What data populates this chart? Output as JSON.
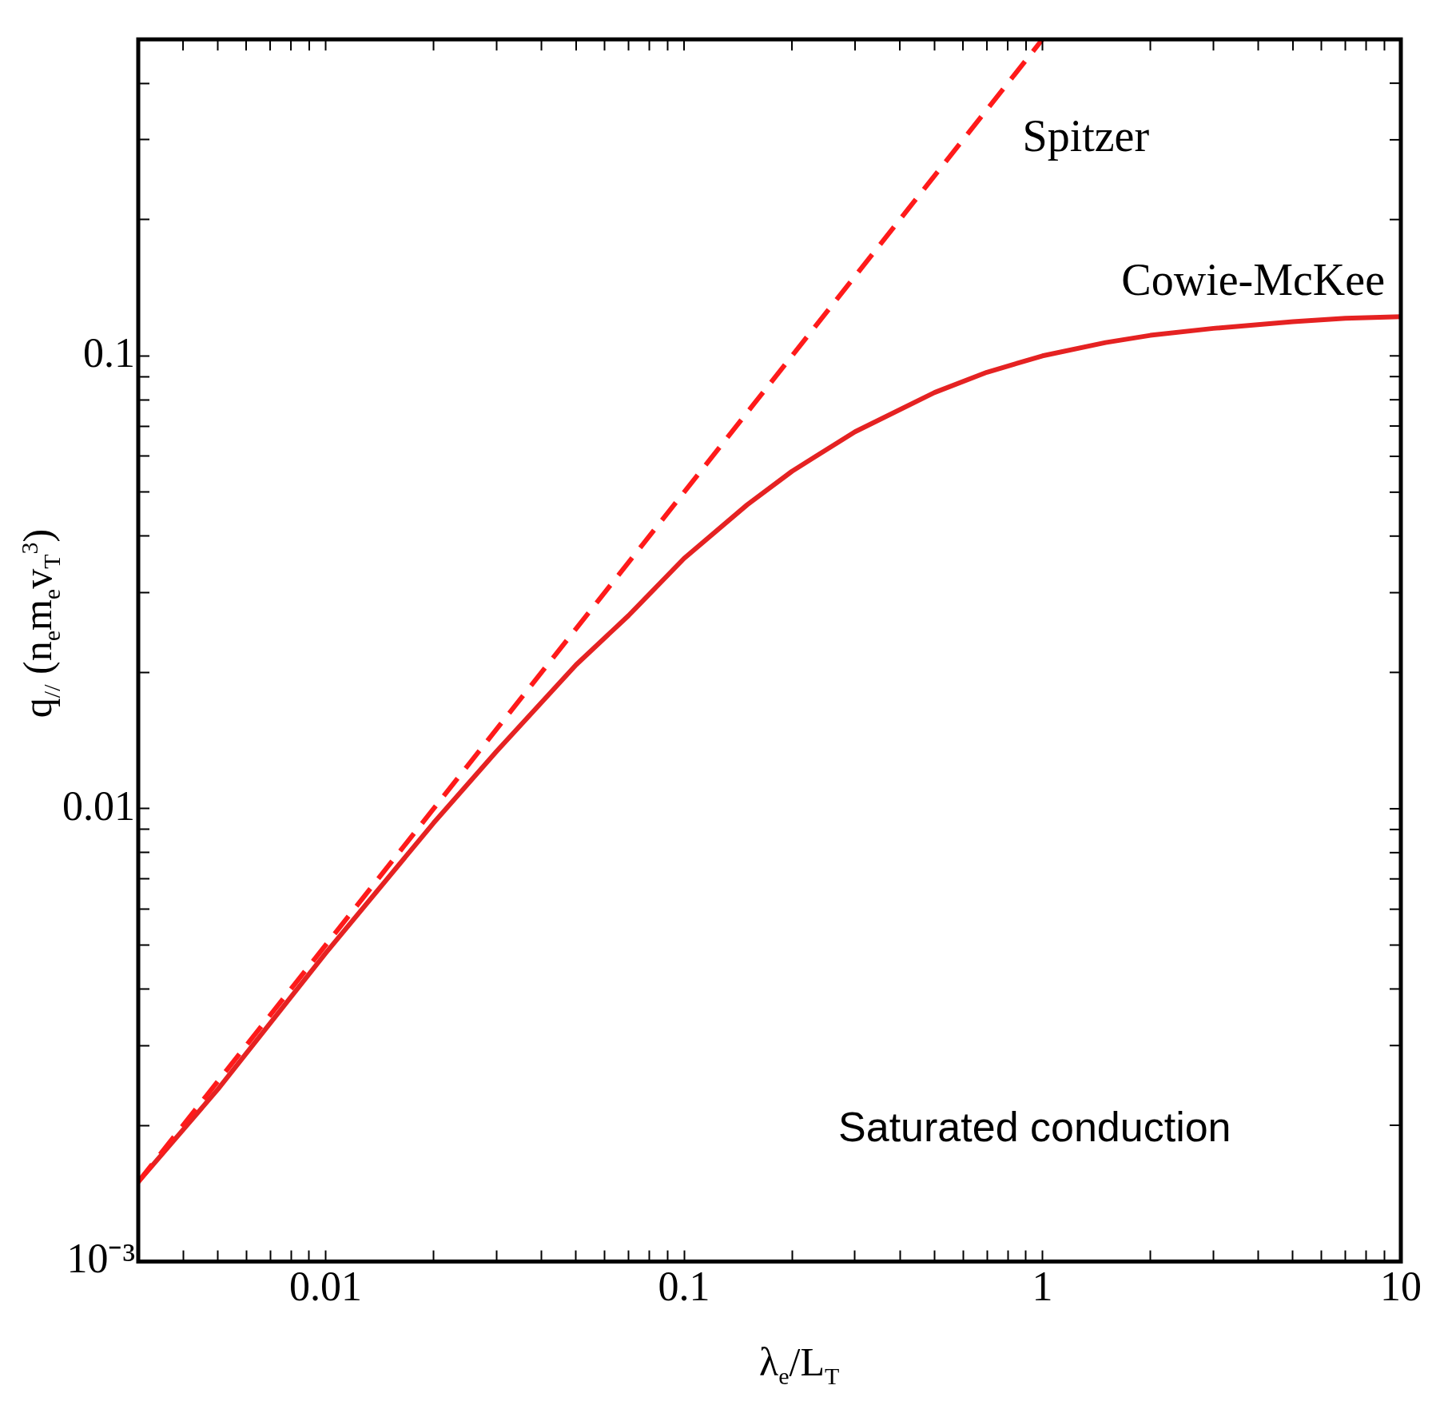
{
  "chart_data": {
    "type": "line",
    "xlabel": "λ$_{e}$/L$_{T}$",
    "ylabel": "q$_{//}$  (n$_{e}$m$_{e}$v$_{T}$$^{3}$)",
    "log": "xy",
    "grid": false,
    "legend": false,
    "marker": "none",
    "xlim": [
      0.003,
      10
    ],
    "ylim": [
      0.001,
      0.5
    ],
    "xticks": [
      {
        "value": 0.003,
        "label": null
      },
      {
        "value": 0.004,
        "label": null
      },
      {
        "value": 0.005,
        "label": null
      },
      {
        "value": 0.006,
        "label": null
      },
      {
        "value": 0.007,
        "label": null
      },
      {
        "value": 0.008,
        "label": null
      },
      {
        "value": 0.009,
        "label": null
      },
      0.01,
      {
        "value": 0.02,
        "label": null
      },
      {
        "value": 0.03,
        "label": null
      },
      {
        "value": 0.04,
        "label": null
      },
      {
        "value": 0.05,
        "label": null
      },
      {
        "value": 0.06,
        "label": null
      },
      {
        "value": 0.07,
        "label": null
      },
      {
        "value": 0.08,
        "label": null
      },
      {
        "value": 0.09,
        "label": null
      },
      0.1,
      {
        "value": 0.2,
        "label": null
      },
      {
        "value": 0.3,
        "label": null
      },
      {
        "value": 0.4,
        "label": null
      },
      {
        "value": 0.5,
        "label": null
      },
      {
        "value": 0.6,
        "label": null
      },
      {
        "value": 0.7,
        "label": null
      },
      {
        "value": 0.8,
        "label": null
      },
      {
        "value": 0.9,
        "label": null
      },
      1,
      {
        "value": 2,
        "label": null
      },
      {
        "value": 3,
        "label": null
      },
      {
        "value": 4,
        "label": null
      },
      {
        "value": 5,
        "label": null
      },
      {
        "value": 6,
        "label": null
      },
      {
        "value": 7,
        "label": null
      },
      {
        "value": 8,
        "label": null
      },
      {
        "value": 9,
        "label": null
      },
      10
    ],
    "yticks": [
      {
        "value": 0.001,
        "label": "10⁻³"
      },
      {
        "value": 0.002,
        "label": null
      },
      {
        "value": 0.003,
        "label": null
      },
      {
        "value": 0.004,
        "label": null
      },
      {
        "value": 0.005,
        "label": null
      },
      {
        "value": 0.006,
        "label": null
      },
      {
        "value": 0.007,
        "label": null
      },
      {
        "value": 0.008,
        "label": null
      },
      {
        "value": 0.009,
        "label": null
      },
      0.01,
      {
        "value": 0.02,
        "label": null
      },
      {
        "value": 0.03,
        "label": null
      },
      {
        "value": 0.04,
        "label": null
      },
      {
        "value": 0.05,
        "label": null
      },
      {
        "value": 0.06,
        "label": null
      },
      {
        "value": 0.07,
        "label": null
      },
      {
        "value": 0.08,
        "label": null
      },
      {
        "value": 0.09,
        "label": null
      },
      0.1,
      {
        "value": 0.2,
        "label": null
      },
      {
        "value": 0.3,
        "label": null
      },
      {
        "value": 0.4,
        "label": null
      },
      {
        "value": 0.5,
        "label": null
      }
    ],
    "series": [
      {
        "name": "Spitzer",
        "color": "#ff1a1a",
        "line_style": "dashed",
        "x": [
          0.003,
          1
        ],
        "values": [
          0.0015,
          0.5
        ]
      },
      {
        "name": "Cowie-McKee",
        "color": "#e52222",
        "line_style": "solid",
        "x": [
          0.003,
          0.005,
          0.01,
          0.02,
          0.03,
          0.05,
          0.07,
          0.1,
          0.15,
          0.2,
          0.3,
          0.5,
          0.7,
          1,
          1.5,
          2,
          3,
          5,
          7,
          10
        ],
        "values": [
          0.0015,
          0.0024,
          0.0048,
          0.0093,
          0.0134,
          0.0208,
          0.0267,
          0.0357,
          0.0469,
          0.0556,
          0.068,
          0.083,
          0.092,
          0.1,
          0.107,
          0.111,
          0.115,
          0.119,
          0.121,
          0.122
        ]
      }
    ],
    "annotations": [
      "Saturated conduction"
    ]
  }
}
